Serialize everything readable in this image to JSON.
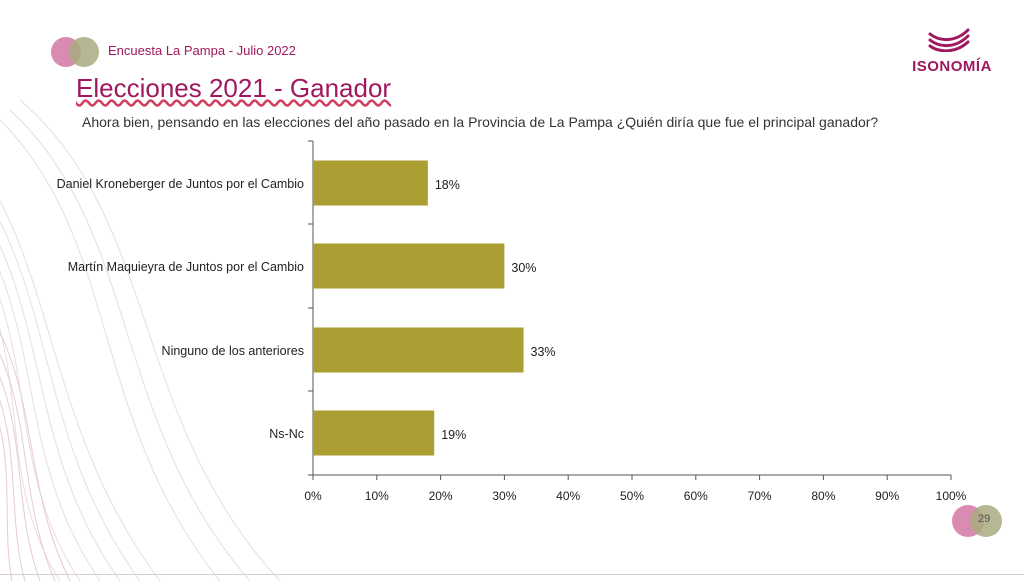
{
  "header": {
    "survey_name": "Encuesta La Pampa - Julio 2022",
    "brand": "ISONOMÍA",
    "title": "Elecciones 2021 - Ganador",
    "question": "Ahora bien, pensando en las elecciones del año pasado en la Provincia de La Pampa ¿Quién diría que fue el principal ganador?"
  },
  "footer": {
    "page_number": "29"
  },
  "colors": {
    "accent": "#a0185f",
    "bar": "#ab9f33",
    "circle_pink": "#d67ea8",
    "circle_olive": "#a8ab80"
  },
  "chart_data": {
    "type": "bar",
    "orientation": "horizontal",
    "categories": [
      "Daniel Kroneberger de Juntos por el Cambio",
      "Martín Maquieyra de Juntos por el Cambio",
      "Ninguno de los anteriores",
      "Ns-Nc"
    ],
    "values": [
      18,
      30,
      33,
      19
    ],
    "value_labels": [
      "18%",
      "30%",
      "33%",
      "19%"
    ],
    "xlim": [
      0,
      100
    ],
    "xticks": [
      "0%",
      "10%",
      "20%",
      "30%",
      "40%",
      "50%",
      "60%",
      "70%",
      "80%",
      "90%",
      "100%"
    ],
    "grid": false,
    "legend": "none"
  }
}
